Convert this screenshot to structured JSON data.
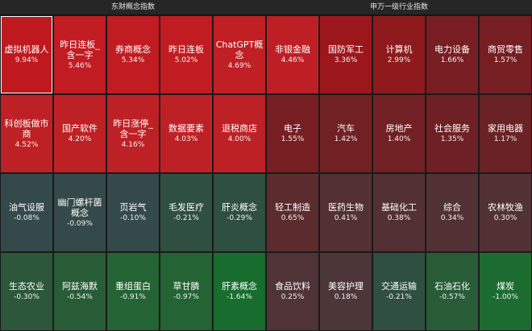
{
  "left": {
    "title": "东财概念指数",
    "tiles": [
      {
        "name": "虚拟机器人",
        "pct": "9.94%",
        "color": "#c0181f",
        "selected": true
      },
      {
        "name": "昨日连板_含一字",
        "pct": "5.46%",
        "color": "#c11c22"
      },
      {
        "name": "券商概念",
        "pct": "5.34%",
        "color": "#c11c22"
      },
      {
        "name": "昨日连板",
        "pct": "5.02%",
        "color": "#c11c22"
      },
      {
        "name": "ChatGPT概念",
        "pct": "4.69%",
        "color": "#c01f24"
      },
      {
        "name": "科创板做市商",
        "pct": "4.52%",
        "color": "#be2125"
      },
      {
        "name": "国产软件",
        "pct": "4.20%",
        "color": "#be2125"
      },
      {
        "name": "昨日涨停_含一字",
        "pct": "4.16%",
        "color": "#be2125"
      },
      {
        "name": "数据要素",
        "pct": "4.03%",
        "color": "#be2125"
      },
      {
        "name": "退税商店",
        "pct": "4.00%",
        "color": "#be2125"
      },
      {
        "name": "油气设服",
        "pct": "-0.08%",
        "color": "#34494a"
      },
      {
        "name": "幽门螺杆菌概念",
        "pct": "-0.09%",
        "color": "#34494a"
      },
      {
        "name": "页岩气",
        "pct": "-0.10%",
        "color": "#34494a"
      },
      {
        "name": "毛发医疗",
        "pct": "-0.21%",
        "color": "#2f4f40"
      },
      {
        "name": "肝炎概念",
        "pct": "-0.29%",
        "color": "#2f4f40"
      },
      {
        "name": "生态农业",
        "pct": "-0.30%",
        "color": "#2c573a"
      },
      {
        "name": "阿兹海默",
        "pct": "-0.54%",
        "color": "#285c37"
      },
      {
        "name": "重组蛋白",
        "pct": "-0.91%",
        "color": "#236334"
      },
      {
        "name": "草甘膦",
        "pct": "-0.97%",
        "color": "#236334"
      },
      {
        "name": "肝素概念",
        "pct": "-1.64%",
        "color": "#176c2e"
      }
    ]
  },
  "right": {
    "title": "申万一级行业指数",
    "tiles": [
      {
        "name": "非银金融",
        "pct": "4.46%",
        "color": "#bd1f24"
      },
      {
        "name": "国防军工",
        "pct": "3.36%",
        "color": "#9c171c"
      },
      {
        "name": "计算机",
        "pct": "2.99%",
        "color": "#8e1a1e"
      },
      {
        "name": "电力设备",
        "pct": "1.66%",
        "color": "#781d21"
      },
      {
        "name": "商贸零售",
        "pct": "1.57%",
        "color": "#761e22"
      },
      {
        "name": "电子",
        "pct": "1.55%",
        "color": "#761e22"
      },
      {
        "name": "汽车",
        "pct": "1.42%",
        "color": "#712023"
      },
      {
        "name": "房地产",
        "pct": "1.40%",
        "color": "#712023"
      },
      {
        "name": "社会服务",
        "pct": "1.35%",
        "color": "#6f2024"
      },
      {
        "name": "家用电器",
        "pct": "1.17%",
        "color": "#6a2225"
      },
      {
        "name": "轻工制造",
        "pct": "0.65%",
        "color": "#5b2b2e"
      },
      {
        "name": "医药生物",
        "pct": "0.41%",
        "color": "#533033"
      },
      {
        "name": "基础化工",
        "pct": "0.38%",
        "color": "#533033"
      },
      {
        "name": "综合",
        "pct": "0.34%",
        "color": "#523134"
      },
      {
        "name": "农林牧渔",
        "pct": "0.30%",
        "color": "#523134"
      },
      {
        "name": "食品饮料",
        "pct": "0.25%",
        "color": "#4f3336"
      },
      {
        "name": "美容护理",
        "pct": "0.18%",
        "color": "#4c3638"
      },
      {
        "name": "交通运输",
        "pct": "-0.21%",
        "color": "#2f4f40"
      },
      {
        "name": "石油石化",
        "pct": "-0.57%",
        "color": "#285c37"
      },
      {
        "name": "煤炭",
        "pct": "-1.00%",
        "color": "#1c6c31"
      }
    ]
  }
}
